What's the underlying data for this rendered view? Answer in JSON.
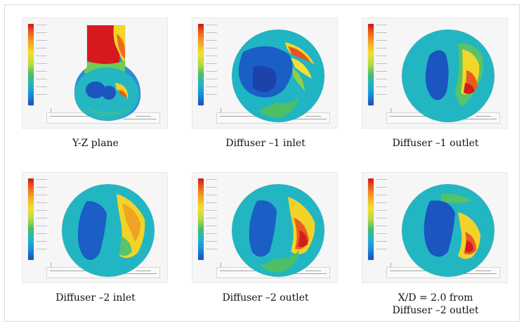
{
  "figure": {
    "captions": {
      "yz_plane": "Y-Z plane",
      "diffuser_1_inlet": "Diffuser –1 inlet",
      "diffuser_1_outlet": "Diffuser –1 outlet",
      "diffuser_2_inlet": "Diffuser –2 inlet",
      "diffuser_2_outlet": "Diffuser –2 outlet",
      "xd_2_line1": "X/D = 2.0 from",
      "xd_2_line2": "Diffuser –2 outlet"
    }
  }
}
